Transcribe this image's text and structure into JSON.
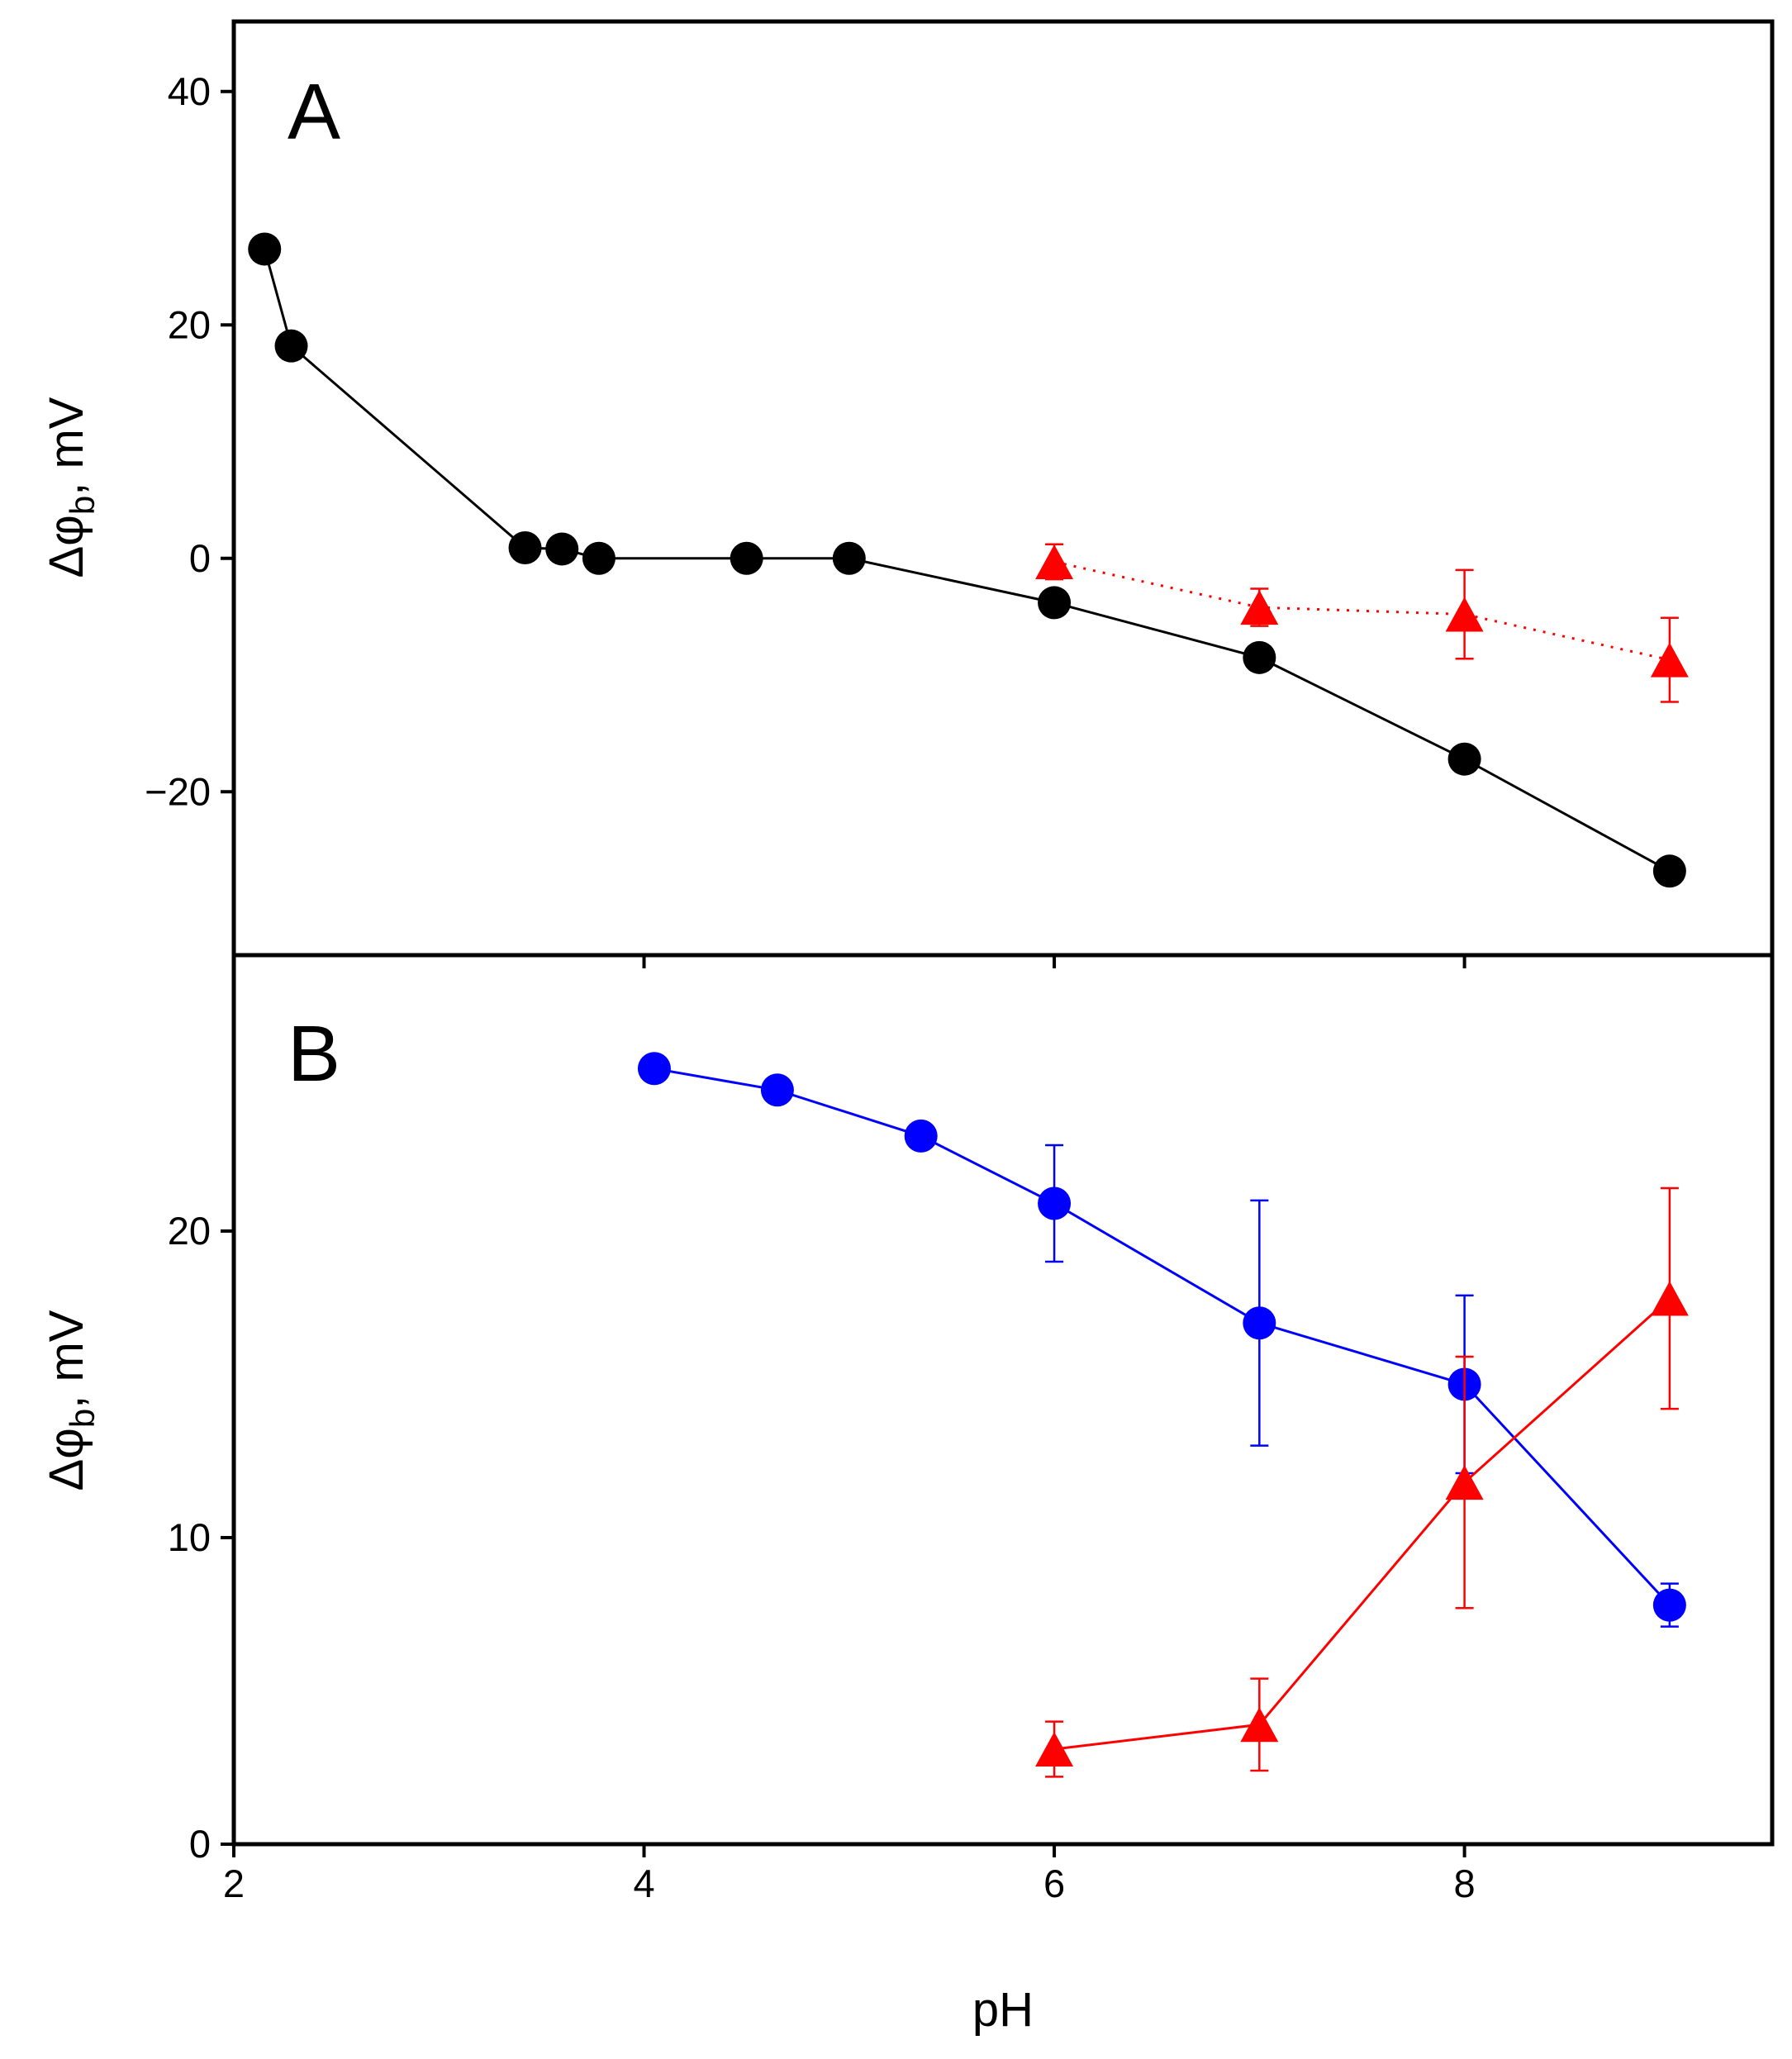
{
  "chart_data": [
    {
      "panel": "A",
      "type": "line",
      "xlabel": "pH",
      "ylabel_main": "Δφ",
      "ylabel_sub": "b",
      "ylabel_tail": ", mV",
      "xlim": [
        2,
        9.5
      ],
      "ylim": [
        -34,
        46
      ],
      "yticks": [
        40,
        20,
        0,
        -20
      ],
      "ytick_labels": [
        "40",
        "20",
        "0",
        "−20"
      ],
      "series": [
        {
          "name": "black-circles",
          "marker": "circle",
          "color": "#000000",
          "line": "solid",
          "x": [
            2.15,
            2.28,
            3.42,
            3.6,
            3.78,
            4.5,
            5.0,
            6.0,
            7.0,
            8.0,
            9.0
          ],
          "y": [
            26.5,
            18.2,
            0.9,
            0.8,
            0.0,
            0.0,
            0.0,
            -3.8,
            -8.5,
            -17.2,
            -26.8
          ]
        },
        {
          "name": "red-triangles",
          "marker": "triangle",
          "color": "#ff0000",
          "line": "dotted",
          "x": [
            6.0,
            7.0,
            8.0,
            9.0
          ],
          "y": [
            -0.3,
            -4.2,
            -4.8,
            -8.7
          ],
          "err": [
            1.5,
            1.6,
            3.8,
            3.6
          ]
        }
      ]
    },
    {
      "panel": "B",
      "type": "line",
      "xlabel": "pH",
      "ylabel_main": "Δφ",
      "ylabel_sub": "b",
      "ylabel_tail": ", mV",
      "xlim": [
        2,
        9.5
      ],
      "ylim": [
        0,
        29
      ],
      "xticks": [
        2,
        4,
        6,
        8
      ],
      "xtick_labels": [
        "2",
        "4",
        "6",
        "8"
      ],
      "yticks": [
        20,
        10,
        0
      ],
      "ytick_labels": [
        "20",
        "10",
        "0"
      ],
      "series": [
        {
          "name": "blue-circles",
          "marker": "circle",
          "color": "#0000ff",
          "line": "solid",
          "x": [
            4.05,
            4.65,
            5.35,
            6.0,
            7.0,
            8.0,
            9.0
          ],
          "y": [
            25.3,
            24.6,
            23.1,
            20.9,
            17.0,
            15.0,
            7.8
          ],
          "err": [
            0,
            0,
            0,
            1.9,
            4.0,
            2.9,
            0.7
          ]
        },
        {
          "name": "red-triangles",
          "marker": "triangle",
          "color": "#ff0000",
          "line": "solid",
          "x": [
            6.0,
            7.0,
            8.0,
            9.0
          ],
          "y": [
            3.1,
            3.9,
            11.8,
            17.8
          ],
          "err": [
            0.9,
            1.5,
            4.1,
            3.6
          ]
        }
      ]
    }
  ]
}
